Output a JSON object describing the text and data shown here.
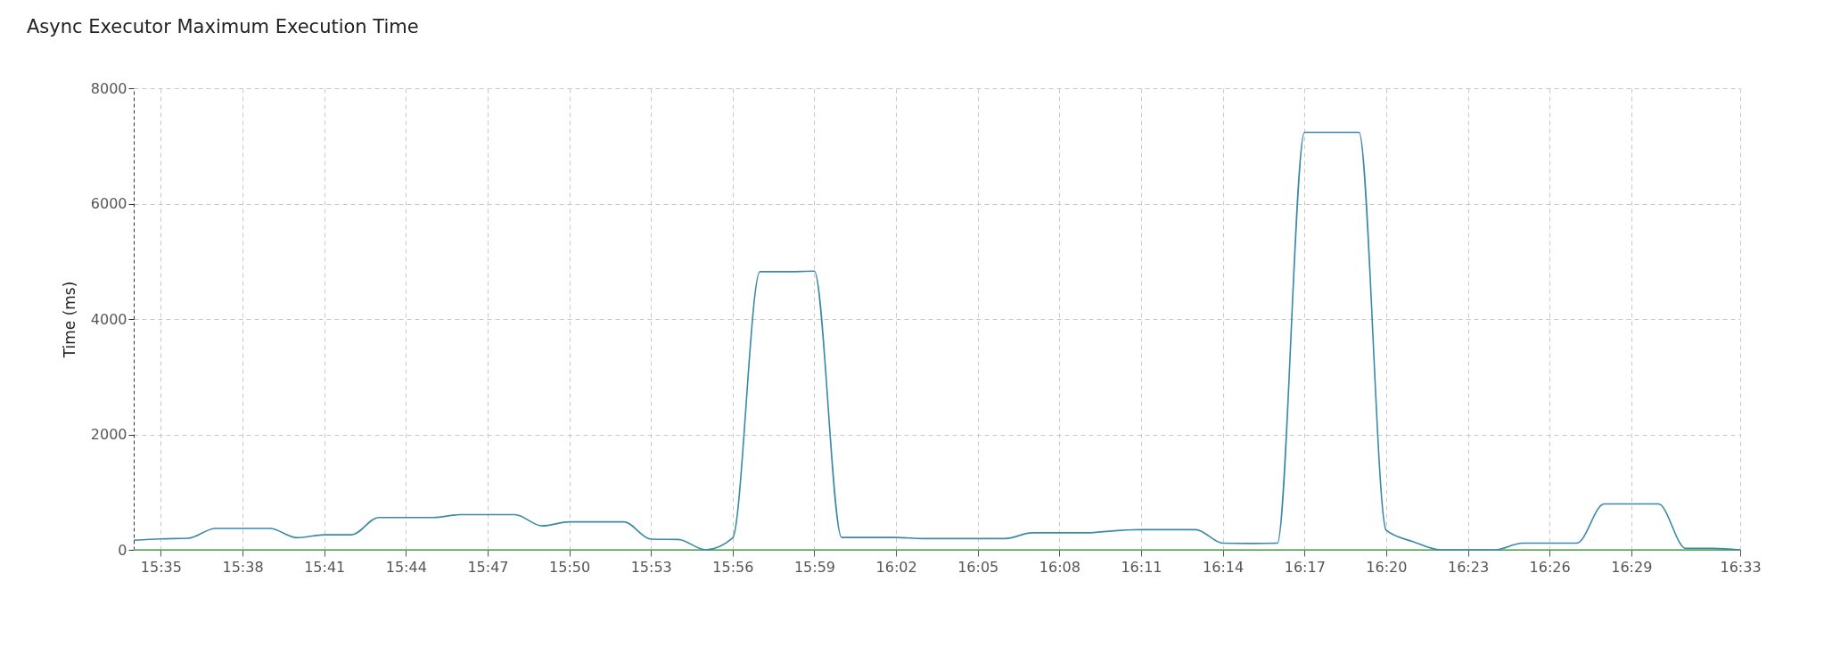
{
  "chart_data": {
    "type": "line",
    "title": "Async Executor Maximum Execution Time",
    "ylabel": "Time (ms)",
    "x": [
      15.5667,
      15.5833,
      15.6,
      15.6167,
      15.6333,
      15.65,
      15.6667,
      15.6833,
      15.7,
      15.7167,
      15.7333,
      15.75,
      15.7667,
      15.7833,
      15.8,
      15.8167,
      15.8333,
      15.85,
      15.8667,
      15.8833,
      15.9,
      15.9167,
      15.9333,
      15.95,
      15.9667,
      15.9833,
      16.0,
      16.0167,
      16.0333,
      16.05,
      16.0667,
      16.0833,
      16.1,
      16.1167,
      16.1333,
      16.15,
      16.1667,
      16.1833,
      16.2,
      16.2167,
      16.2333,
      16.25,
      16.2667,
      16.2833,
      16.3,
      16.3167,
      16.3333,
      16.35,
      16.3667,
      16.3833,
      16.4,
      16.4167,
      16.4333,
      16.45,
      16.4667,
      16.4833,
      16.5,
      16.5167,
      16.5333,
      16.55
    ],
    "series": [
      {
        "color": "#5cb85c",
        "values": [
          0,
          0,
          0,
          0,
          0,
          0,
          0,
          0,
          0,
          0,
          0,
          0,
          0,
          0,
          0,
          0,
          0,
          0,
          0,
          0,
          0,
          0,
          0,
          0,
          0,
          0,
          0,
          0,
          0,
          0,
          0,
          0,
          0,
          0,
          0,
          0,
          0,
          0,
          0,
          0,
          0,
          0,
          0,
          0,
          0,
          0,
          0,
          0,
          0,
          0,
          0,
          0,
          0,
          0,
          0,
          0,
          0,
          0,
          0,
          0
        ]
      },
      {
        "color": "#3a8aa6",
        "values": [
          165,
          190,
          200,
          370,
          370,
          370,
          210,
          260,
          260,
          560,
          560,
          560,
          610,
          610,
          610,
          415,
          485,
          485,
          485,
          185,
          180,
          0,
          205,
          4820,
          4820,
          4830,
          215,
          215,
          215,
          195,
          195,
          195,
          195,
          295,
          295,
          295,
          330,
          350,
          350,
          350,
          115,
          110,
          115,
          7235,
          7235,
          7235,
          340,
          140,
          0,
          0,
          0,
          115,
          115,
          115,
          795,
          795,
          795,
          25,
          25,
          0
        ]
      }
    ],
    "xlim": [
      15.5667,
      16.55
    ],
    "xticks": [
      {
        "value": 15.5833,
        "label": "15:35"
      },
      {
        "value": 15.6333,
        "label": "15:38"
      },
      {
        "value": 15.6833,
        "label": "15:41"
      },
      {
        "value": 15.7333,
        "label": "15:44"
      },
      {
        "value": 15.7833,
        "label": "15:47"
      },
      {
        "value": 15.8333,
        "label": "15:50"
      },
      {
        "value": 15.8833,
        "label": "15:53"
      },
      {
        "value": 15.9333,
        "label": "15:56"
      },
      {
        "value": 15.9833,
        "label": "15:59"
      },
      {
        "value": 16.0333,
        "label": "16:02"
      },
      {
        "value": 16.0833,
        "label": "16:05"
      },
      {
        "value": 16.1333,
        "label": "16:08"
      },
      {
        "value": 16.1833,
        "label": "16:11"
      },
      {
        "value": 16.2333,
        "label": "16:14"
      },
      {
        "value": 16.2833,
        "label": "16:17"
      },
      {
        "value": 16.3333,
        "label": "16:20"
      },
      {
        "value": 16.3833,
        "label": "16:23"
      },
      {
        "value": 16.4333,
        "label": "16:26"
      },
      {
        "value": 16.4833,
        "label": "16:29"
      },
      {
        "value": 16.55,
        "label": "16:33"
      }
    ],
    "ylim": [
      0,
      8000
    ],
    "yticks": [
      0,
      2000,
      4000,
      6000,
      8000
    ],
    "grid": true,
    "marker": "none",
    "line_style": "solid"
  }
}
